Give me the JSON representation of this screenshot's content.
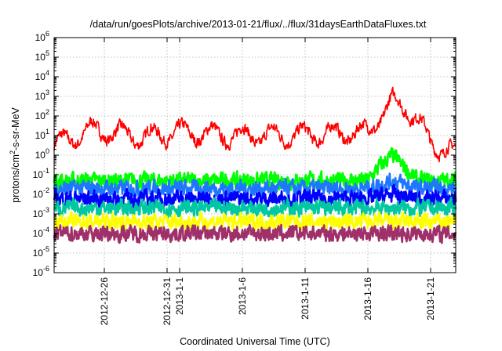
{
  "chart_data": {
    "type": "line",
    "title": "/data/run/goesPlots/archive/2013-01-21/flux/../flux/31daysEarthDataFluxes.txt",
    "xlabel": "Coordinated Universal Time (UTC)",
    "ylabel_parts": [
      "protons/cm",
      "2",
      "-s-sr-MeV"
    ],
    "y_scale": "log",
    "ylim": [
      1e-06,
      1000000.0
    ],
    "y_ticks": [
      {
        "base": "10",
        "exp": "-6",
        "value": 1e-06
      },
      {
        "base": "10",
        "exp": "-5",
        "value": 1e-05
      },
      {
        "base": "10",
        "exp": "-4",
        "value": 0.0001
      },
      {
        "base": "10",
        "exp": "-3",
        "value": 0.001
      },
      {
        "base": "10",
        "exp": "-2",
        "value": 0.01
      },
      {
        "base": "10",
        "exp": "-1",
        "value": 0.1
      },
      {
        "base": "10",
        "exp": "0",
        "value": 1
      },
      {
        "base": "10",
        "exp": "1",
        "value": 10
      },
      {
        "base": "10",
        "exp": "2",
        "value": 100
      },
      {
        "base": "10",
        "exp": "3",
        "value": 1000
      },
      {
        "base": "10",
        "exp": "4",
        "value": 10000
      },
      {
        "base": "10",
        "exp": "5",
        "value": 100000
      },
      {
        "base": "10",
        "exp": "6",
        "value": 1000000
      }
    ],
    "xlim": [
      "2012-12-22",
      "2013-01-23"
    ],
    "x_ticks": [
      "2012-12-26",
      "2012-12-31",
      "2013-1-1",
      "2013-1-6",
      "2013-1-11",
      "2013-1-16",
      "2013-1-21"
    ],
    "x_tick_dates": [
      "2012-12-26",
      "2012-12-31",
      "2013-01-01",
      "2013-01-06",
      "2013-01-11",
      "2013-01-16",
      "2013-01-21"
    ],
    "grid": true,
    "legend": "none",
    "series": [
      {
        "color": "#ff0000",
        "dates": [
          "2012-12-22",
          "2012-12-25",
          "2012-12-29",
          "2013-01-01",
          "2013-01-05",
          "2013-01-09",
          "2013-01-13",
          "2013-01-16",
          "2013-01-17",
          "2013-01-18",
          "2013-01-19",
          "2013-01-20",
          "2013-01-21",
          "2013-01-22",
          "2013-01-23"
        ],
        "values": [
          3,
          20,
          8,
          15,
          10,
          10,
          12,
          15,
          100,
          500,
          300,
          50,
          5,
          2,
          1
        ]
      },
      {
        "color": "#00ff00",
        "dates": [
          "2012-12-22",
          "2013-01-16",
          "2013-01-17",
          "2013-01-18",
          "2013-01-19",
          "2013-01-20",
          "2013-01-23"
        ],
        "values": [
          0.05,
          0.05,
          0.3,
          1,
          0.2,
          0.05,
          0.05
        ]
      },
      {
        "color": "#1f77ff",
        "dates": [
          "2012-12-22",
          "2013-01-16",
          "2013-01-18",
          "2013-01-20",
          "2013-01-23"
        ],
        "values": [
          0.02,
          0.02,
          0.05,
          0.02,
          0.02
        ]
      },
      {
        "color": "#0000ff",
        "dates": [
          "2012-12-22",
          "2013-01-16",
          "2013-01-18",
          "2013-01-20",
          "2013-01-23"
        ],
        "values": [
          0.006,
          0.006,
          0.01,
          0.006,
          0.006
        ]
      },
      {
        "color": "#00c8a0",
        "dates": [
          "2012-12-22",
          "2013-01-23"
        ],
        "values": [
          0.002,
          0.002
        ]
      },
      {
        "color": "#ffff00",
        "dates": [
          "2012-12-22",
          "2013-01-23"
        ],
        "values": [
          0.0004,
          0.0004
        ]
      },
      {
        "color": "#a0306a",
        "dates": [
          "2012-12-22",
          "2013-01-23"
        ],
        "values": [
          0.0001,
          0.0001
        ]
      }
    ]
  }
}
